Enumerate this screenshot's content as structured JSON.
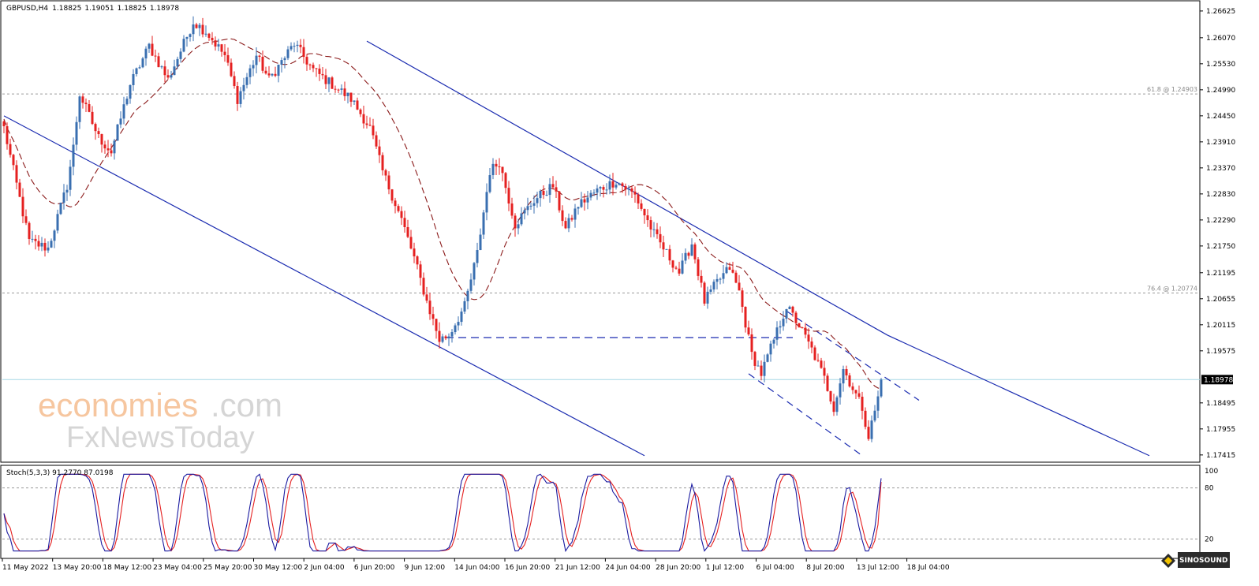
{
  "chart_data": {
    "type": "candlestick",
    "symbol": "GBPUSD,H4",
    "ohlc_header": [
      "1.18825",
      "1.19051",
      "1.18825",
      "1.18978"
    ],
    "price_axis_ticks": [
      "1.26625",
      "1.26070",
      "1.25530",
      "1.24990",
      "1.24450",
      "1.23910",
      "1.23370",
      "1.22830",
      "1.22290",
      "1.21750",
      "1.21195",
      "1.20655",
      "1.20115",
      "1.19575",
      "1.18495",
      "1.17955",
      "1.17415"
    ],
    "price_range": [
      1.17265,
      1.2682
    ],
    "current_price": "1.18978",
    "fib_levels": [
      {
        "label": "61.8 @ 1.24903",
        "price": 1.24903
      },
      {
        "label": "76.4 @ 1.20774",
        "price": 1.20774
      }
    ],
    "time_labels": [
      "11 May 2022",
      "13 May 20:00",
      "18 May 12:00",
      "23 May 04:00",
      "25 May 20:00",
      "30 May 12:00",
      "2 Jun 04:00",
      "6 Jun 20:00",
      "9 Jun 12:00",
      "14 Jun 04:00",
      "16 Jun 20:00",
      "21 Jun 12:00",
      "24 Jun 04:00",
      "28 Jun 20:00",
      "1 Jul 12:00",
      "6 Jul 04:00",
      "8 Jul 20:00",
      "13 Jul 12:00",
      "18 Jul 04:00"
    ],
    "bar_count": 279,
    "key_prices": [
      [
        0,
        1.242
      ],
      [
        8,
        1.2185
      ],
      [
        14,
        1.217
      ],
      [
        20,
        1.23
      ],
      [
        22,
        1.238
      ],
      [
        24,
        1.249
      ],
      [
        30,
        1.24
      ],
      [
        34,
        1.237
      ],
      [
        40,
        1.251
      ],
      [
        46,
        1.259
      ],
      [
        52,
        1.252
      ],
      [
        60,
        1.264
      ],
      [
        64,
        1.262
      ],
      [
        70,
        1.257
      ],
      [
        74,
        1.248
      ],
      [
        80,
        1.257
      ],
      [
        84,
        1.252
      ],
      [
        92,
        1.2595
      ],
      [
        98,
        1.254
      ],
      [
        104,
        1.251
      ],
      [
        110,
        1.248
      ],
      [
        116,
        1.242
      ],
      [
        120,
        1.233
      ],
      [
        126,
        1.223
      ],
      [
        130,
        1.215
      ],
      [
        134,
        1.206
      ],
      [
        138,
        1.198
      ],
      [
        141,
        1.199
      ],
      [
        146,
        1.205
      ],
      [
        150,
        1.216
      ],
      [
        154,
        1.233
      ],
      [
        157,
        1.235
      ],
      [
        162,
        1.222
      ],
      [
        168,
        1.227
      ],
      [
        174,
        1.23
      ],
      [
        178,
        1.221
      ],
      [
        182,
        1.226
      ],
      [
        188,
        1.229
      ],
      [
        194,
        1.231
      ],
      [
        200,
        1.228
      ],
      [
        206,
        1.22
      ],
      [
        210,
        1.216
      ],
      [
        214,
        1.212
      ],
      [
        218,
        1.218
      ],
      [
        222,
        1.206
      ],
      [
        226,
        1.21
      ],
      [
        230,
        1.213
      ],
      [
        233,
        1.208
      ],
      [
        237,
        1.195
      ],
      [
        240,
        1.191
      ],
      [
        244,
        1.198
      ],
      [
        248,
        1.205
      ],
      [
        252,
        1.201
      ],
      [
        256,
        1.196
      ],
      [
        260,
        1.19
      ],
      [
        263,
        1.184
      ],
      [
        266,
        1.192
      ],
      [
        269,
        1.188
      ],
      [
        272,
        1.184
      ],
      [
        274,
        1.178
      ],
      [
        277,
        1.186
      ],
      [
        279,
        1.1898
      ]
    ],
    "ma_period_note": "",
    "resistance_trendline": [
      [
        115,
        1.26
      ],
      [
        280,
        1.199
      ],
      [
        363,
        1.174
      ]
    ],
    "support_trendline": [
      [
        0,
        1.2445
      ],
      [
        203,
        1.174
      ]
    ],
    "horizontal_support": {
      "price": 1.1985,
      "from_bar": 140,
      "to_bar": 250
    },
    "inner_channel_upper": [
      [
        248,
        1.204
      ],
      [
        290,
        1.1855
      ]
    ],
    "inner_channel_lower": [
      [
        236,
        1.191
      ],
      [
        272,
        1.174
      ]
    ],
    "stochastic": {
      "label": "Stoch(5,3,3) 91.2770 87.0198",
      "levels": [
        "100",
        "80",
        "20"
      ],
      "range": [
        0,
        100
      ],
      "main_value": "91.2770",
      "signal_value": "87.0198"
    },
    "colors": {
      "bull": "#3a6fb0",
      "bear": "#e52020",
      "ma": "#8b1a1a",
      "trend": "#1a2bb0",
      "stoch_main": "#1a1aa0",
      "stoch_signal": "#e52020"
    }
  },
  "watermark": {
    "brand_line1_a": "economies",
    "brand_line1_b": ".com",
    "brand_line2": "FxNewsToday",
    "corner_logo": "SINOSOUND"
  }
}
